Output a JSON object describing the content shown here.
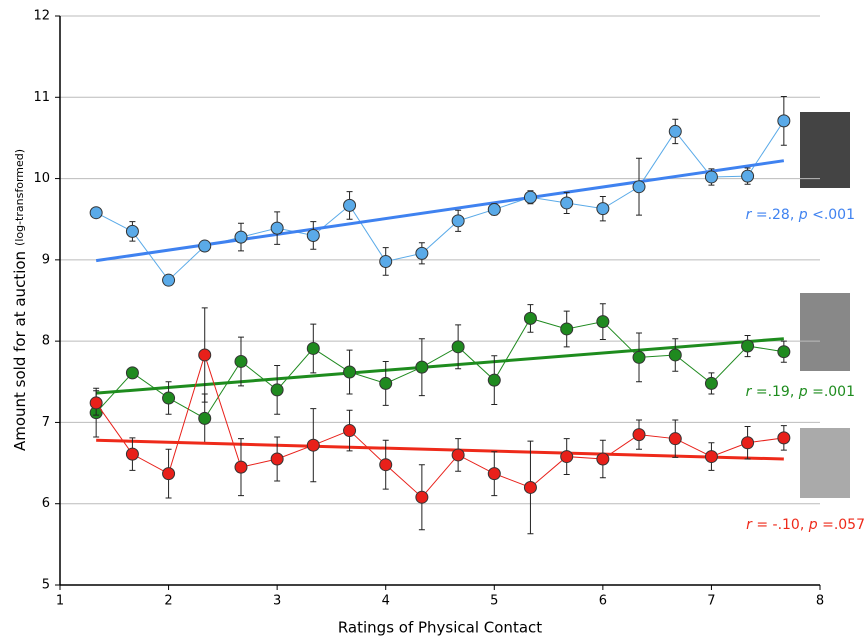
{
  "chart_data": {
    "type": "line",
    "xlabel": "Ratings of Physical Contact",
    "ylabel": "Amount sold for at auction",
    "ylabel_note": "(log-transformed)",
    "x": [
      1.333,
      1.667,
      2,
      2.333,
      2.667,
      3,
      3.333,
      3.667,
      4,
      4.333,
      4.667,
      5,
      5.333,
      5.667,
      6,
      6.333,
      6.667,
      7,
      7.333,
      7.667
    ],
    "xlim": [
      1,
      8
    ],
    "xticks": [
      1,
      2,
      3,
      4,
      5,
      6,
      7,
      8
    ],
    "ylim": [
      5,
      12
    ],
    "yticks": [
      5,
      6,
      7,
      8,
      9,
      10,
      11,
      12
    ],
    "grid": true,
    "series": [
      {
        "color": "#5aaae8",
        "trend_color": "#3f82f0",
        "values": [
          9.58,
          9.35,
          8.75,
          9.17,
          9.28,
          9.39,
          9.3,
          9.67,
          8.98,
          9.08,
          9.48,
          9.62,
          9.77,
          9.7,
          9.63,
          9.9,
          10.58,
          10.02,
          10.03,
          10.71
        ],
        "errors": [
          0,
          0.12,
          0,
          0.05,
          0.17,
          0.2,
          0.17,
          0.17,
          0.17,
          0.13,
          0.13,
          0.07,
          0.08,
          0.13,
          0.15,
          0.35,
          0.15,
          0.1,
          0.1,
          0.3
        ],
        "trend": {
          "x": [
            1.333,
            7.667
          ],
          "y": [
            8.99,
            10.22
          ]
        },
        "annotation": [
          {
            "text": "r",
            "italic": true
          },
          {
            "text": " =.28, "
          },
          {
            "text": "p",
            "italic": true
          },
          {
            "text": " <.001"
          }
        ]
      },
      {
        "color": "#1f8a1f",
        "trend_color": "#1e8c1e",
        "values": [
          7.12,
          7.61,
          7.3,
          7.05,
          7.75,
          7.4,
          7.91,
          7.62,
          7.48,
          7.68,
          7.93,
          7.52,
          8.28,
          8.15,
          8.24,
          7.8,
          7.83,
          7.48,
          7.94,
          7.87
        ],
        "errors": [
          0.3,
          0.05,
          0.2,
          0.3,
          0.3,
          0.3,
          0.3,
          0.27,
          0.27,
          0.35,
          0.27,
          0.3,
          0.17,
          0.22,
          0.22,
          0.3,
          0.2,
          0.13,
          0.13,
          0.13
        ],
        "trend": {
          "x": [
            1.333,
            7.667
          ],
          "y": [
            7.36,
            8.03
          ]
        },
        "annotation": [
          {
            "text": "r",
            "italic": true
          },
          {
            "text": " =.19, "
          },
          {
            "text": "p",
            "italic": true
          },
          {
            "text": " =.001"
          }
        ]
      },
      {
        "color": "#e8201a",
        "trend_color": "#ee2a1a",
        "values": [
          7.24,
          6.61,
          6.37,
          7.83,
          6.45,
          6.55,
          6.72,
          6.9,
          6.48,
          6.08,
          6.6,
          6.37,
          6.2,
          6.58,
          6.55,
          6.85,
          6.8,
          6.58,
          6.75,
          6.81
        ],
        "errors": [
          0.15,
          0.2,
          0.3,
          0.58,
          0.35,
          0.27,
          0.45,
          0.25,
          0.3,
          0.4,
          0.2,
          0.27,
          0.57,
          0.22,
          0.23,
          0.18,
          0.23,
          0.17,
          0.2,
          0.15
        ],
        "trend": {
          "x": [
            1.333,
            7.667
          ],
          "y": [
            6.78,
            6.55
          ]
        },
        "annotation": [
          {
            "text": "r",
            "italic": true
          },
          {
            "text": " = -.10, "
          },
          {
            "text": "p",
            "italic": true
          },
          {
            "text": " =.057"
          }
        ]
      }
    ]
  }
}
